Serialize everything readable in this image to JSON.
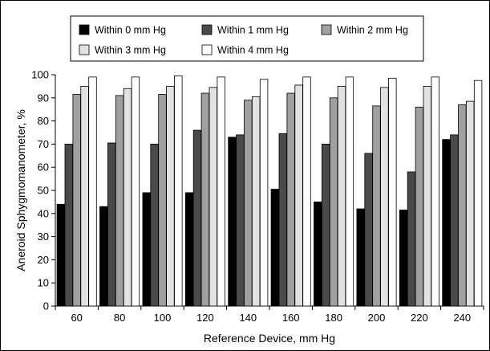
{
  "chart_data": {
    "type": "bar",
    "xlabel": "Reference Device, mm Hg",
    "ylabel": "Aneroid Sphygmomanometer, %",
    "ylim": [
      0,
      100
    ],
    "yticks": [
      0,
      10,
      20,
      30,
      40,
      50,
      60,
      70,
      80,
      90,
      100
    ],
    "grid": false,
    "legend_position": "top",
    "categories": [
      "60",
      "80",
      "100",
      "120",
      "140",
      "160",
      "180",
      "200",
      "220",
      "240"
    ],
    "series": [
      {
        "name": "Within 0 mm Hg",
        "color": "#000000",
        "values": [
          44,
          43,
          49,
          49,
          73,
          50.5,
          45,
          42,
          41.5,
          72
        ]
      },
      {
        "name": "Within 1 mm Hg",
        "color": "#4a4a4a",
        "values": [
          70,
          70.5,
          70,
          76,
          74,
          74.5,
          70,
          66,
          58,
          74
        ]
      },
      {
        "name": "Within 2 mm Hg",
        "color": "#a0a0a0",
        "values": [
          91.5,
          91,
          91.5,
          92,
          89,
          92,
          90,
          86.5,
          86,
          87
        ]
      },
      {
        "name": "Within 3 mm Hg",
        "color": "#e2e2e2",
        "values": [
          95,
          94,
          95,
          94.5,
          90.5,
          95.5,
          95,
          94.5,
          95,
          88.5
        ]
      },
      {
        "name": "Within 4 mm Hg",
        "color": "#ffffff",
        "values": [
          99,
          99,
          99.5,
          99,
          98,
          99,
          99,
          98.5,
          99,
          97.5
        ]
      }
    ]
  }
}
